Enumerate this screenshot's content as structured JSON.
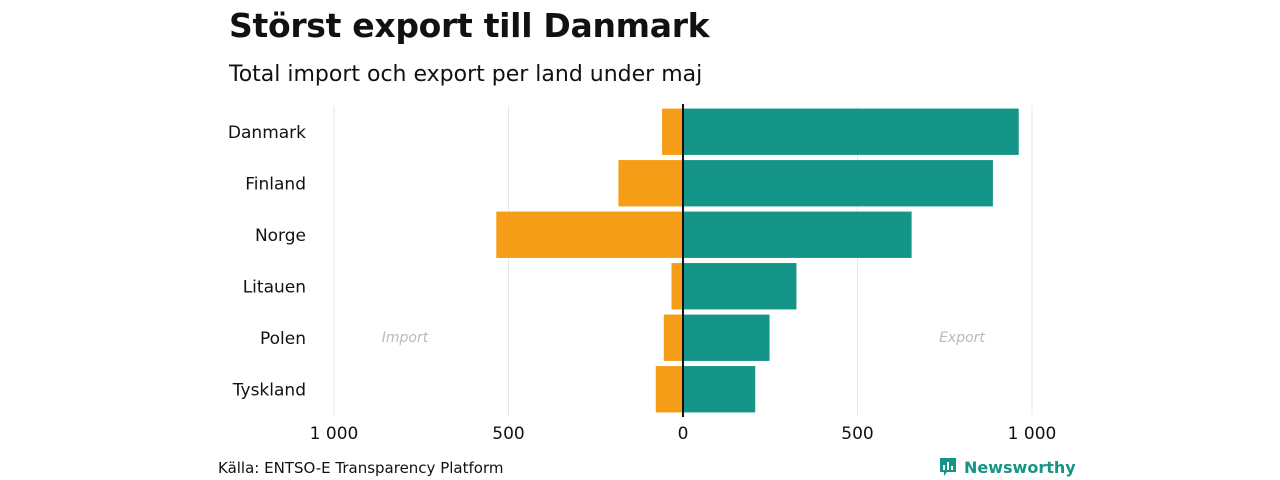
{
  "title": "Störst export till Danmark",
  "subtitle": "Total import och export per land under maj",
  "source": "Källa: ENTSO-E Transparency Platform",
  "brand": {
    "name": "Newsworthy",
    "icon": "newsworthy-logo-icon",
    "color": "#159587"
  },
  "chart_data": {
    "type": "bar",
    "orientation": "horizontal-diverging",
    "categories": [
      "Danmark",
      "Finland",
      "Norge",
      "Litauen",
      "Polen",
      "Tyskland"
    ],
    "series": [
      {
        "name": "Import",
        "color": "#F59D16",
        "values": [
          60,
          185,
          535,
          33,
          55,
          78
        ]
      },
      {
        "name": "Export",
        "color": "#159587",
        "values": [
          962,
          888,
          655,
          325,
          248,
          207
        ]
      }
    ],
    "xlim": [
      -1000,
      1000
    ],
    "xticks": [
      {
        "value": -1000,
        "label": "1 000"
      },
      {
        "value": -500,
        "label": "500"
      },
      {
        "value": 0,
        "label": "0"
      },
      {
        "value": 500,
        "label": "500"
      },
      {
        "value": 1000,
        "label": "1 000"
      }
    ],
    "side_labels": {
      "left": "Import",
      "right": "Export"
    },
    "grid": true
  }
}
